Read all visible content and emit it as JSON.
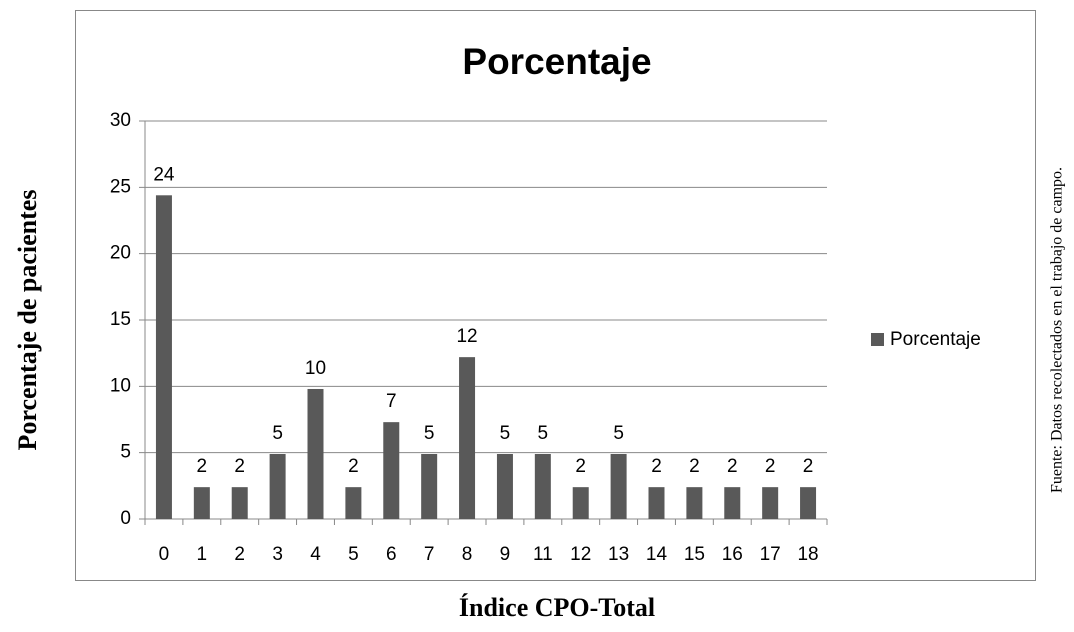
{
  "chart_data": {
    "type": "bar",
    "title": "Porcentaje",
    "x_label": "Índice CPO-Total",
    "y_label": "Porcentaje de pacientes",
    "source": "Fuente: Datos recolectados en el trabajo de campo.",
    "categories": [
      "0",
      "1",
      "2",
      "3",
      "4",
      "5",
      "6",
      "7",
      "8",
      "9",
      "11",
      "12",
      "13",
      "14",
      "15",
      "16",
      "17",
      "18"
    ],
    "series": [
      {
        "name": "Porcentaje",
        "color": "#595959",
        "values": [
          24.4,
          2.4,
          2.4,
          4.9,
          9.8,
          2.4,
          7.3,
          4.9,
          12.2,
          4.9,
          4.9,
          2.4,
          4.9,
          2.4,
          2.4,
          2.4,
          2.4,
          2.4
        ],
        "value_labels": [
          "24",
          "2",
          "2",
          "5",
          "10",
          "2",
          "7",
          "5",
          "12",
          "5",
          "5",
          "2",
          "5",
          "2",
          "2",
          "2",
          "2",
          "2"
        ]
      }
    ],
    "ylim": [
      0,
      30
    ],
    "yticks": [
      0,
      5,
      10,
      15,
      20,
      25,
      30
    ],
    "grid": true,
    "legend": "right"
  }
}
